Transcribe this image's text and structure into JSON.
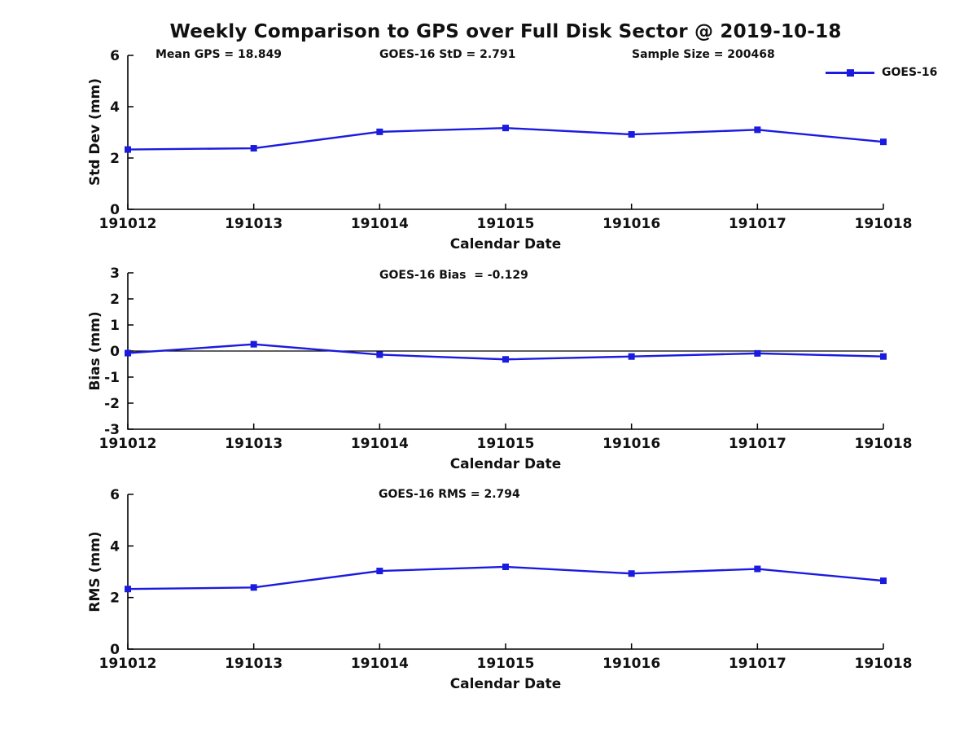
{
  "figure": {
    "title": "Weekly Comparison to GPS over Full Disk Sector @ 2019-10-18",
    "background": "#ffffff",
    "axis_color": "#000000",
    "series_color": "#1b1be0",
    "legend": {
      "label": "GOES-16",
      "marker": "square",
      "position": "top-right"
    }
  },
  "annotations": {
    "mean_gps": "Mean GPS = 18.849",
    "std": "GOES-16 StD = 2.791",
    "sample_size": "Sample Size = 200468",
    "bias": "GOES-16 Bias  = -0.129",
    "rms": "GOES-16 RMS = 2.794"
  },
  "chart_data": [
    {
      "type": "line",
      "name": "std-dev",
      "xlabel": "Calendar Date",
      "ylabel": "Std Dev (mm)",
      "ylim": [
        0,
        6
      ],
      "yticks": [
        0,
        2,
        4,
        6
      ],
      "grid": false,
      "zero_line": false,
      "categories": [
        "191012",
        "191013",
        "191014",
        "191015",
        "191016",
        "191017",
        "191018"
      ],
      "series": [
        {
          "name": "GOES-16",
          "color": "#1b1be0",
          "marker": "square",
          "values": [
            2.33,
            2.38,
            3.02,
            3.17,
            2.92,
            3.1,
            2.63
          ]
        }
      ]
    },
    {
      "type": "line",
      "name": "bias",
      "xlabel": "Calendar Date",
      "ylabel": "Bias (mm)",
      "ylim": [
        -3,
        3
      ],
      "yticks": [
        -3,
        -2,
        -1,
        0,
        1,
        2,
        3
      ],
      "grid": false,
      "zero_line": true,
      "categories": [
        "191012",
        "191013",
        "191014",
        "191015",
        "191016",
        "191017",
        "191018"
      ],
      "series": [
        {
          "name": "GOES-16",
          "color": "#1b1be0",
          "marker": "square",
          "values": [
            -0.08,
            0.26,
            -0.14,
            -0.32,
            -0.21,
            -0.09,
            -0.21
          ]
        }
      ]
    },
    {
      "type": "line",
      "name": "rms",
      "xlabel": "Calendar Date",
      "ylabel": "RMS (mm)",
      "ylim": [
        0,
        6
      ],
      "yticks": [
        0,
        2,
        4,
        6
      ],
      "grid": false,
      "zero_line": false,
      "categories": [
        "191012",
        "191013",
        "191014",
        "191015",
        "191016",
        "191017",
        "191018"
      ],
      "series": [
        {
          "name": "GOES-16",
          "color": "#1b1be0",
          "marker": "square",
          "values": [
            2.33,
            2.39,
            3.03,
            3.19,
            2.93,
            3.11,
            2.65
          ]
        }
      ]
    }
  ]
}
